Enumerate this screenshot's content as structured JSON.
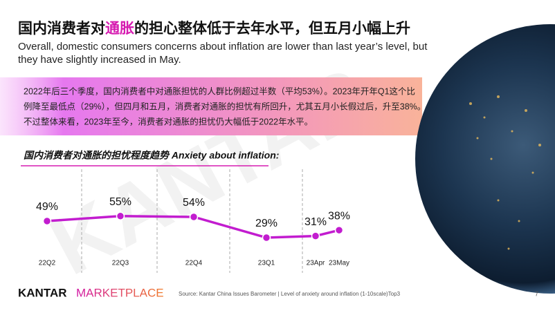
{
  "slide": {
    "title_parts": [
      "国内消费者对",
      "通胀",
      "的担心整体低于去年水平，但五月小幅上升"
    ],
    "subtitle": "Overall, domestic consumers concerns about inflation are lower than last year’s level, but they have slightly increased in May.",
    "paragraph": [
      "2022年后三个季度，国内消费者中对通胀担忧的人群比例超过半数（平均53%）。2023年开年Q1这个比",
      "例降至最低点（29%），但四月和五月，消费者对通胀的担忧有所回升，尤其五月小长假过后，升至38%。",
      "不过整体来看，2023年至今，消费者对通胀的担忧仍大幅低于2022年水平。"
    ],
    "watermark": "KANTAR",
    "logo": [
      "KANTAR",
      "MARKETPLACE"
    ],
    "source": "Source:  Kantar China Issues Barometer | Level of anxiety around inflation (1-10scale)Top3",
    "page_number": "7"
  },
  "chart_data": {
    "type": "line",
    "title": "国内消费者对通胀的担忧程度趋势 Anxiety about inflation:",
    "categories": [
      "22Q2",
      "22Q3",
      "22Q4",
      "23Q1",
      "23Apr",
      "23May"
    ],
    "values": [
      49,
      55,
      54,
      29,
      31,
      38
    ],
    "value_labels": [
      "49%",
      "55%",
      "54%",
      "29%",
      "31%",
      "38%"
    ],
    "color": "#c21ccf"
  }
}
